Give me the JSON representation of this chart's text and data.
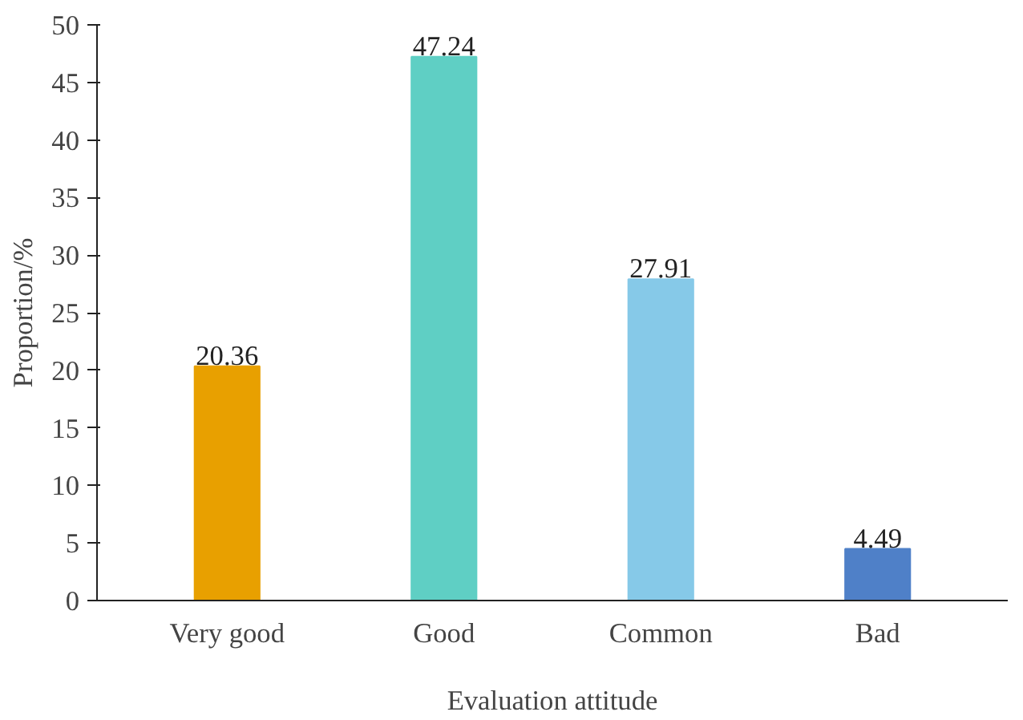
{
  "chart_data": {
    "type": "bar",
    "xlabel": "Evaluation attitude",
    "ylabel": "Proportion/%",
    "categories": [
      "Very good",
      "Good",
      "Common",
      "Bad"
    ],
    "values": [
      20.36,
      47.24,
      27.91,
      4.49
    ],
    "colors": [
      "#e8a000",
      "#5fcfc4",
      "#86c9e8",
      "#4f80c8"
    ],
    "ylim": [
      0,
      50
    ],
    "yticks": [
      0,
      5,
      10,
      15,
      20,
      25,
      30,
      35,
      40,
      45,
      50
    ],
    "data_labels": true,
    "grid": false
  }
}
